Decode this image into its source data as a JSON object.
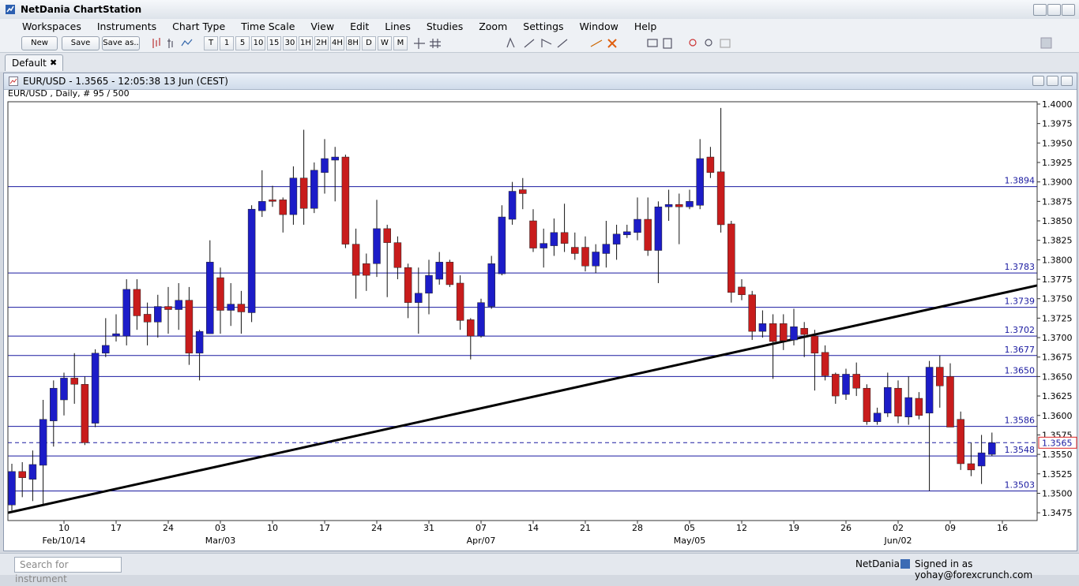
{
  "app": {
    "title": "NetDania ChartStation",
    "menu": [
      "Workspaces",
      "Instruments",
      "Chart Type",
      "Time Scale",
      "View",
      "Edit",
      "Lines",
      "Studies",
      "Zoom",
      "Settings",
      "Window",
      "Help"
    ],
    "toolbar_buttons": [
      "New",
      "Save",
      "Save as.."
    ],
    "toolbar_scales": [
      "T",
      "1",
      "5",
      "10",
      "15",
      "30",
      "1H",
      "2H",
      "4H",
      "8H",
      "D",
      "W",
      "M"
    ],
    "tab": "Default",
    "status": {
      "search": "Search for instrument",
      "brand": "NetDania",
      "signed_in": "Signed in as yohay@forexcrunch.com"
    }
  },
  "chart_data": {
    "type": "candlestick",
    "title": "EUR/USD - 1.3565 - 12:05:38  13 Jun (CEST)",
    "subtitle": "EUR/USD , Daily, # 95 / 500",
    "up_color": "#1c1cc8",
    "down_color": "#c81c1c",
    "open": [
      1.3485,
      1.3528,
      1.3518,
      1.3536,
      1.3593,
      1.362,
      1.3648,
      1.364,
      1.359,
      1.368,
      1.3702,
      1.3702,
      1.3762,
      1.373,
      1.372,
      1.374,
      1.3736,
      1.3748,
      1.368,
      1.3705,
      1.3777,
      1.3735,
      1.3743,
      1.3732,
      1.3863,
      1.3877,
      1.3877,
      1.3858,
      1.3905,
      1.3866,
      1.3912,
      1.3928,
      1.3932,
      1.382,
      1.3795,
      1.3795,
      1.384,
      1.3822,
      1.379,
      1.3745,
      1.3757,
      1.3775,
      1.3797,
      1.377,
      1.3723,
      1.3702,
      1.374,
      1.3782,
      1.3852,
      1.389,
      1.385,
      1.3815,
      1.3818,
      1.3835,
      1.3816,
      1.3816,
      1.3792,
      1.3808,
      1.382,
      1.3832,
      1.3835,
      1.3852,
      1.3812,
      1.3868,
      1.3871,
      1.3868,
      1.387,
      1.3932,
      1.3913,
      1.3846,
      1.3765,
      1.3755,
      1.3708,
      1.3718,
      1.3718,
      1.3697,
      1.3712,
      1.3702,
      1.3681,
      1.3653,
      1.3627,
      1.3653,
      1.3635,
      1.3592,
      1.3603,
      1.3635,
      1.3598,
      1.3622,
      1.3603,
      1.3662,
      1.365,
      1.3595,
      1.3538,
      1.3535,
      1.355
    ],
    "high": [
      1.3538,
      1.354,
      1.3555,
      1.362,
      1.3645,
      1.3655,
      1.368,
      1.365,
      1.3685,
      1.3725,
      1.373,
      1.3775,
      1.3775,
      1.3745,
      1.3755,
      1.3765,
      1.377,
      1.3765,
      1.371,
      1.3825,
      1.379,
      1.377,
      1.376,
      1.387,
      1.3915,
      1.3895,
      1.388,
      1.392,
      1.3967,
      1.3925,
      1.3955,
      1.3945,
      1.3935,
      1.384,
      1.3808,
      1.3877,
      1.3845,
      1.383,
      1.3795,
      1.379,
      1.38,
      1.381,
      1.38,
      1.378,
      1.3725,
      1.375,
      1.3805,
      1.387,
      1.39,
      1.3905,
      1.3865,
      1.384,
      1.3853,
      1.3872,
      1.3835,
      1.383,
      1.382,
      1.385,
      1.3845,
      1.3845,
      1.388,
      1.388,
      1.3875,
      1.389,
      1.3885,
      1.389,
      1.3955,
      1.3945,
      1.3995,
      1.385,
      1.3775,
      1.376,
      1.3735,
      1.373,
      1.373,
      1.3737,
      1.372,
      1.371,
      1.369,
      1.3655,
      1.366,
      1.3668,
      1.364,
      1.361,
      1.3655,
      1.3645,
      1.365,
      1.363,
      1.367,
      1.3677,
      1.3667,
      1.3605,
      1.3565,
      1.3575,
      1.3578
    ],
    "low": [
      1.3478,
      1.3495,
      1.349,
      1.3485,
      1.356,
      1.36,
      1.3615,
      1.3562,
      1.3585,
      1.3675,
      1.3695,
      1.369,
      1.371,
      1.369,
      1.37,
      1.3705,
      1.371,
      1.3665,
      1.3645,
      1.3705,
      1.3705,
      1.3715,
      1.3705,
      1.372,
      1.3855,
      1.3868,
      1.3835,
      1.3845,
      1.3845,
      1.386,
      1.3885,
      1.3875,
      1.3815,
      1.375,
      1.376,
      1.3778,
      1.3752,
      1.3775,
      1.3725,
      1.3705,
      1.373,
      1.3768,
      1.3765,
      1.371,
      1.3672,
      1.37,
      1.3737,
      1.378,
      1.3845,
      1.3865,
      1.381,
      1.379,
      1.3805,
      1.381,
      1.38,
      1.3785,
      1.3783,
      1.379,
      1.38,
      1.3828,
      1.3825,
      1.3805,
      1.377,
      1.385,
      1.382,
      1.3865,
      1.3865,
      1.3905,
      1.3835,
      1.3745,
      1.3748,
      1.3697,
      1.37,
      1.3647,
      1.3684,
      1.369,
      1.3675,
      1.3632,
      1.3645,
      1.3615,
      1.362,
      1.3625,
      1.3588,
      1.3588,
      1.3598,
      1.359,
      1.3588,
      1.3595,
      1.3503,
      1.361,
      1.3585,
      1.353,
      1.3522,
      1.3512,
      1.3548
    ],
    "close": [
      1.3528,
      1.352,
      1.3537,
      1.3595,
      1.3635,
      1.3648,
      1.364,
      1.3565,
      1.368,
      1.369,
      1.3705,
      1.3762,
      1.3728,
      1.372,
      1.374,
      1.3736,
      1.3748,
      1.368,
      1.3708,
      1.3797,
      1.3735,
      1.3743,
      1.3733,
      1.3865,
      1.3875,
      1.3875,
      1.3858,
      1.3905,
      1.3866,
      1.3915,
      1.393,
      1.3932,
      1.382,
      1.378,
      1.378,
      1.384,
      1.3822,
      1.379,
      1.3745,
      1.3757,
      1.378,
      1.3797,
      1.3768,
      1.3722,
      1.3702,
      1.3745,
      1.3795,
      1.3855,
      1.3888,
      1.3885,
      1.3815,
      1.3821,
      1.3835,
      1.3821,
      1.3808,
      1.3792,
      1.381,
      1.382,
      1.3833,
      1.3836,
      1.3852,
      1.3812,
      1.3868,
      1.3871,
      1.3868,
      1.3875,
      1.393,
      1.3912,
      1.3845,
      1.3758,
      1.3755,
      1.3708,
      1.3718,
      1.3695,
      1.3696,
      1.3714,
      1.3704,
      1.368,
      1.3651,
      1.3625,
      1.3653,
      1.3635,
      1.3592,
      1.3603,
      1.3636,
      1.3599,
      1.3623,
      1.36,
      1.3662,
      1.3638,
      1.3585,
      1.3538,
      1.353,
      1.3552,
      1.3565
    ],
    "ylim": [
      1.3465,
      1.4003
    ],
    "yticks": [
      {
        "value": 1.3475,
        "label": "1.3475"
      },
      {
        "value": 1.35,
        "label": "1.3500"
      },
      {
        "value": 1.3525,
        "label": "1.3525"
      },
      {
        "value": 1.355,
        "label": "1.3550"
      },
      {
        "value": 1.3575,
        "label": "1.3575"
      },
      {
        "value": 1.36,
        "label": "1.3600"
      },
      {
        "value": 1.3625,
        "label": "1.3625"
      },
      {
        "value": 1.365,
        "label": "1.3650"
      },
      {
        "value": 1.3675,
        "label": "1.3675"
      },
      {
        "value": 1.37,
        "label": "1.3700"
      },
      {
        "value": 1.3725,
        "label": "1.3725"
      },
      {
        "value": 1.375,
        "label": "1.3750"
      },
      {
        "value": 1.3775,
        "label": "1.3775"
      },
      {
        "value": 1.38,
        "label": "1.3800"
      },
      {
        "value": 1.3825,
        "label": "1.3825"
      },
      {
        "value": 1.385,
        "label": "1.3850"
      },
      {
        "value": 1.3875,
        "label": "1.3875"
      },
      {
        "value": 1.39,
        "label": "1.3900"
      },
      {
        "value": 1.3925,
        "label": "1.3925"
      },
      {
        "value": 1.395,
        "label": "1.3950"
      },
      {
        "value": 1.3975,
        "label": "1.3975"
      },
      {
        "value": 1.4,
        "label": "1.4000"
      }
    ],
    "xticks": [
      {
        "value": 5,
        "label": "10"
      },
      {
        "value": 10,
        "label": "17"
      },
      {
        "value": 15,
        "label": "24"
      },
      {
        "value": 20,
        "label": "03"
      },
      {
        "value": 25,
        "label": "10"
      },
      {
        "value": 30,
        "label": "17"
      },
      {
        "value": 35,
        "label": "24"
      },
      {
        "value": 40,
        "label": "31"
      },
      {
        "value": 45,
        "label": "07"
      },
      {
        "value": 50,
        "label": "14"
      },
      {
        "value": 55,
        "label": "21"
      },
      {
        "value": 60,
        "label": "28"
      },
      {
        "value": 65,
        "label": "05"
      },
      {
        "value": 70,
        "label": "12"
      },
      {
        "value": 75,
        "label": "19"
      },
      {
        "value": 80,
        "label": "26"
      },
      {
        "value": 85,
        "label": "02"
      },
      {
        "value": 90,
        "label": "09"
      },
      {
        "value": 95,
        "label": "16"
      }
    ],
    "xticks_major": [
      {
        "value": 5,
        "label": "Feb/10/14"
      },
      {
        "value": 20,
        "label": "Mar/03"
      },
      {
        "value": 45,
        "label": "Apr/07"
      },
      {
        "value": 65,
        "label": "May/05"
      },
      {
        "value": 85,
        "label": "Jun/02"
      }
    ],
    "levels": [
      {
        "value": 1.3894,
        "label": "1.3894"
      },
      {
        "value": 1.3783,
        "label": "1.3783"
      },
      {
        "value": 1.3739,
        "label": "1.3739"
      },
      {
        "value": 1.3702,
        "label": "1.3702"
      },
      {
        "value": 1.3677,
        "label": "1.3677"
      },
      {
        "value": 1.365,
        "label": "1.3650"
      },
      {
        "value": 1.3586,
        "label": "1.3586"
      },
      {
        "value": 1.3548,
        "label": "1.3548"
      },
      {
        "value": 1.3503,
        "label": "1.3503"
      }
    ],
    "level_color": "#1a1aa0",
    "current_price": 1.3565,
    "trendline": {
      "start": 1.3475,
      "end": 1.3767
    }
  }
}
